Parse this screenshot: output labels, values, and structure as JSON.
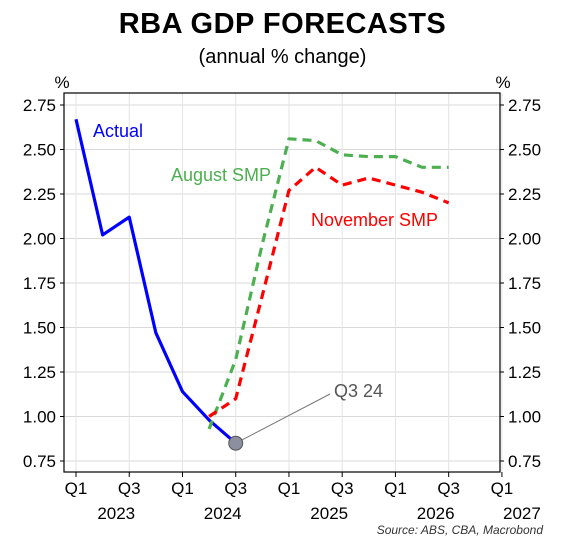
{
  "title": "RBA GDP FORECASTS",
  "subtitle": "(annual % change)",
  "source": "Source: ABS, CBA, Macrobond",
  "chart_data": {
    "type": "line",
    "title": "RBA GDP FORECASTS",
    "subtitle": "(annual % change)",
    "y_unit_left": "%",
    "y_unit_right": "%",
    "ylim": [
      0.75,
      2.75
    ],
    "y_ticks": [
      "0.75",
      "1.00",
      "1.25",
      "1.50",
      "1.75",
      "2.00",
      "2.25",
      "2.50",
      "2.75"
    ],
    "x_ticks": [
      "Q1",
      "Q3",
      "Q1",
      "Q3",
      "Q1",
      "Q3",
      "Q1",
      "Q3",
      "Q1"
    ],
    "year_labels": [
      "2023",
      "2024",
      "2025",
      "2026",
      "2027"
    ],
    "grid": true,
    "series": [
      {
        "name": "Actual",
        "color": "#0000ff",
        "style": "solid",
        "points": [
          {
            "x": "2023-Q1",
            "y": 2.67
          },
          {
            "x": "2023-Q2",
            "y": 2.02
          },
          {
            "x": "2023-Q3",
            "y": 2.12
          },
          {
            "x": "2023-Q4",
            "y": 1.47
          },
          {
            "x": "2024-Q1",
            "y": 1.14
          },
          {
            "x": "2024-Q2",
            "y": 0.98
          },
          {
            "x": "2024-Q3",
            "y": 0.85
          }
        ]
      },
      {
        "name": "August SMP",
        "color": "#4caf50",
        "style": "dashed",
        "points": [
          {
            "x": "2024-Q2",
            "y": 0.93
          },
          {
            "x": "2024-Q3",
            "y": 1.32
          },
          {
            "x": "2024-Q4",
            "y": 1.97
          },
          {
            "x": "2025-Q1",
            "y": 2.56
          },
          {
            "x": "2025-Q2",
            "y": 2.55
          },
          {
            "x": "2025-Q3",
            "y": 2.47
          },
          {
            "x": "2025-Q4",
            "y": 2.46
          },
          {
            "x": "2026-Q1",
            "y": 2.46
          },
          {
            "x": "2026-Q2",
            "y": 2.4
          },
          {
            "x": "2026-Q3",
            "y": 2.4
          }
        ]
      },
      {
        "name": "November SMP",
        "color": "#ff0000",
        "style": "dashed",
        "points": [
          {
            "x": "2024-Q2",
            "y": 1.0
          },
          {
            "x": "2024-Q3",
            "y": 1.1
          },
          {
            "x": "2024-Q4",
            "y": 1.68
          },
          {
            "x": "2025-Q1",
            "y": 2.27
          },
          {
            "x": "2025-Q2",
            "y": 2.4
          },
          {
            "x": "2025-Q3",
            "y": 2.3
          },
          {
            "x": "2025-Q4",
            "y": 2.34
          },
          {
            "x": "2026-Q1",
            "y": 2.3
          },
          {
            "x": "2026-Q2",
            "y": 2.26
          },
          {
            "x": "2026-Q3",
            "y": 2.2
          }
        ]
      }
    ],
    "annotations": [
      {
        "text": "Q3 24",
        "x": "2024-Q3",
        "y": 0.85,
        "color": "#555555"
      }
    ]
  }
}
